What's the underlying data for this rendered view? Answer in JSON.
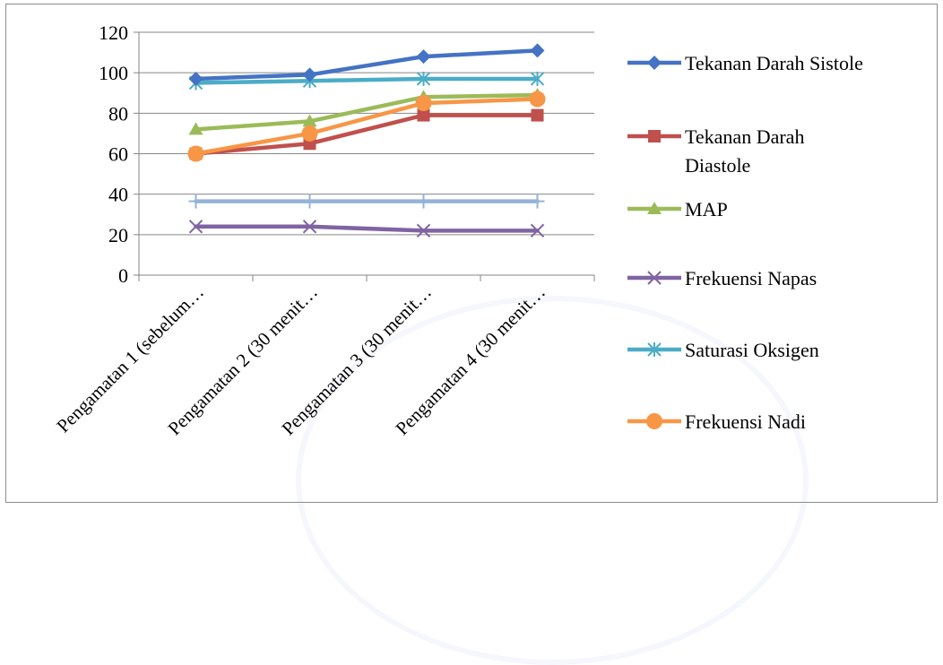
{
  "chart_data": {
    "type": "line",
    "title": "",
    "xlabel": "",
    "ylabel": "",
    "ylim": [
      0,
      120
    ],
    "yticks": [
      0,
      20,
      40,
      60,
      80,
      100,
      120
    ],
    "grid": true,
    "legend_position": "right",
    "categories": [
      "Pengamatan 1 (sebelum…",
      "Pengamatan 2 (30 menit…",
      "Pengamatan 3 (30 menit…",
      "Pengamatan 4 (30 menit…"
    ],
    "series": [
      {
        "name": "Tekanan Darah Sistole",
        "color": "#4472c4",
        "marker": "diamond",
        "values": [
          97,
          99,
          108,
          111
        ]
      },
      {
        "name": "Tekanan Darah Diastole",
        "color": "#c0504d",
        "marker": "square",
        "values": [
          60,
          65,
          79,
          79
        ]
      },
      {
        "name": "MAP",
        "color": "#9bbb59",
        "marker": "triangle",
        "values": [
          72,
          76,
          88,
          89
        ]
      },
      {
        "name": "Frekuensi Napas",
        "color": "#8064a2",
        "marker": "x",
        "values": [
          24,
          24,
          22,
          22
        ]
      },
      {
        "name": "Saturasi Oksigen",
        "color": "#4bacc6",
        "marker": "star",
        "values": [
          95,
          96,
          97,
          97
        ]
      },
      {
        "name": "Frekuensi Nadi",
        "color": "#f79646",
        "marker": "circle",
        "values": [
          60,
          70,
          85,
          87
        ]
      },
      {
        "name": "",
        "color": "#95b3d7",
        "marker": "plus",
        "values": [
          36.5,
          36.5,
          36.5,
          36.5
        ]
      }
    ]
  }
}
